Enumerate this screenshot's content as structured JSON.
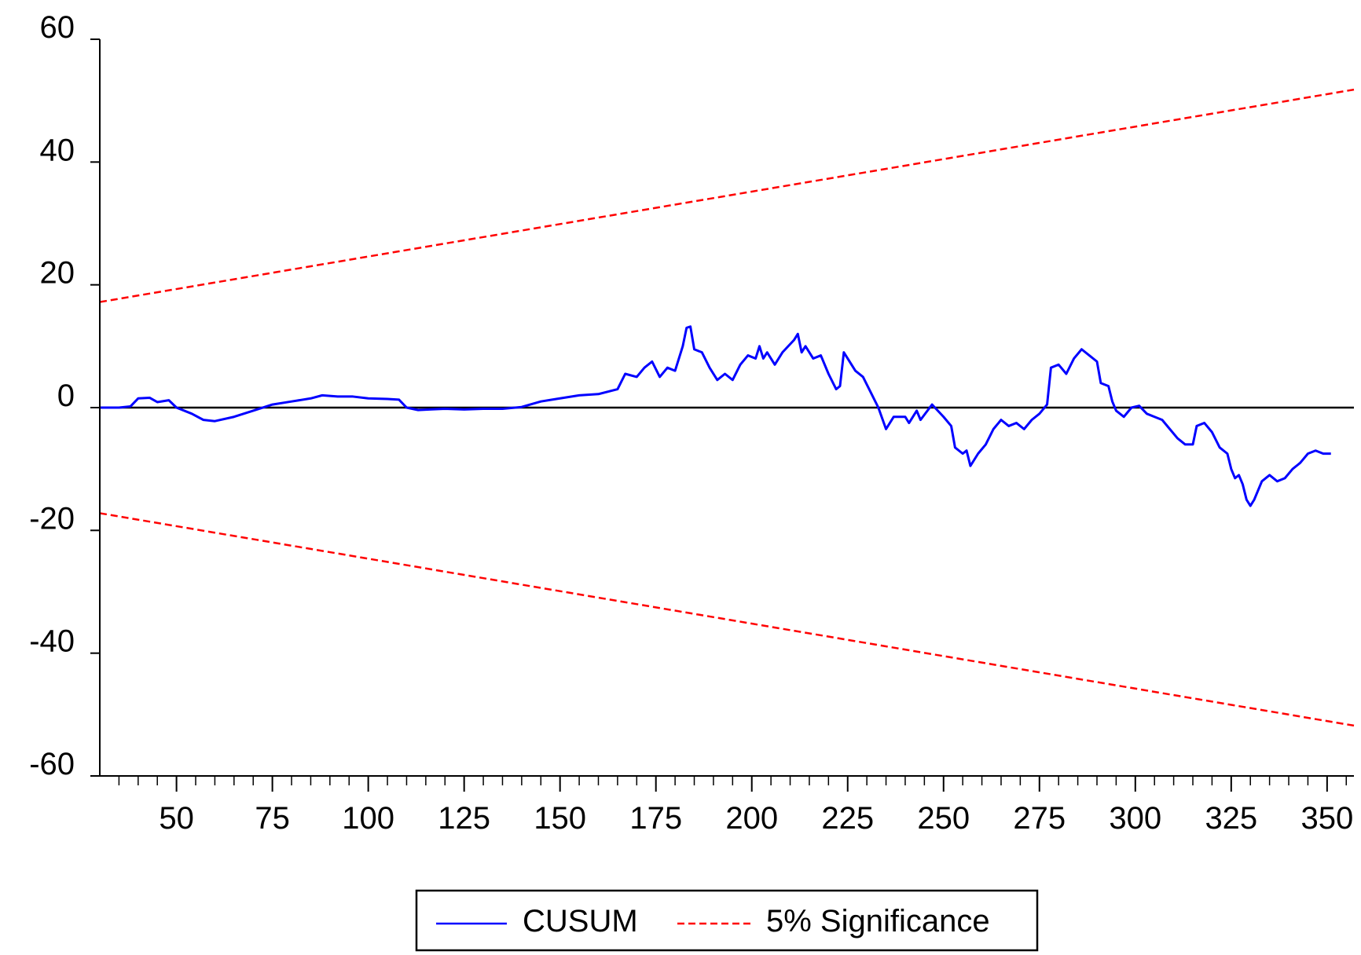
{
  "chart_data": {
    "type": "line",
    "title": "",
    "xlabel": "",
    "ylabel": "",
    "xlim": [
      30,
      357
    ],
    "ylim": [
      -60,
      60
    ],
    "x_ticks": [
      50,
      75,
      100,
      125,
      150,
      175,
      200,
      225,
      250,
      275,
      300,
      325,
      350
    ],
    "x_tick_labels": [
      "50",
      "75",
      "100",
      "125",
      "150",
      "175",
      "200",
      "225",
      "250",
      "275",
      "300",
      "325",
      "350"
    ],
    "y_ticks": [
      60,
      40,
      20,
      0,
      -20,
      -40,
      -60
    ],
    "y_tick_labels": [
      "60",
      "40",
      "20",
      "0",
      "-20",
      "-40",
      "-60"
    ],
    "grid": false,
    "zero_line": true,
    "legend_position": "bottom-center",
    "series": [
      {
        "name": "CUSUM",
        "color": "#0000ff",
        "style": "solid",
        "points": [
          [
            30,
            0
          ],
          [
            35,
            0
          ],
          [
            38,
            0.2
          ],
          [
            40,
            1.5
          ],
          [
            43,
            1.6
          ],
          [
            45,
            0.9
          ],
          [
            48,
            1.2
          ],
          [
            50,
            0
          ],
          [
            54,
            -1
          ],
          [
            57,
            -2
          ],
          [
            60,
            -2.2
          ],
          [
            65,
            -1.5
          ],
          [
            70,
            -0.5
          ],
          [
            75,
            0.5
          ],
          [
            80,
            1
          ],
          [
            85,
            1.5
          ],
          [
            88,
            2
          ],
          [
            92,
            1.8
          ],
          [
            96,
            1.8
          ],
          [
            100,
            1.5
          ],
          [
            105,
            1.4
          ],
          [
            108,
            1.3
          ],
          [
            110,
            0
          ],
          [
            113,
            -0.4
          ],
          [
            116,
            -0.3
          ],
          [
            120,
            -0.2
          ],
          [
            125,
            -0.3
          ],
          [
            130,
            -0.2
          ],
          [
            135,
            -0.2
          ],
          [
            140,
            0.1
          ],
          [
            145,
            1
          ],
          [
            150,
            1.5
          ],
          [
            155,
            2
          ],
          [
            160,
            2.2
          ],
          [
            165,
            3
          ],
          [
            167,
            5.5
          ],
          [
            170,
            5
          ],
          [
            172,
            6.5
          ],
          [
            174,
            7.5
          ],
          [
            176,
            5
          ],
          [
            178,
            6.5
          ],
          [
            180,
            6
          ],
          [
            182,
            10
          ],
          [
            183,
            13
          ],
          [
            184,
            13.2
          ],
          [
            185,
            9.5
          ],
          [
            187,
            9
          ],
          [
            189,
            6.5
          ],
          [
            191,
            4.5
          ],
          [
            193,
            5.5
          ],
          [
            195,
            4.5
          ],
          [
            197,
            7
          ],
          [
            199,
            8.5
          ],
          [
            201,
            8
          ],
          [
            202,
            10
          ],
          [
            203,
            8
          ],
          [
            204,
            9
          ],
          [
            206,
            7
          ],
          [
            208,
            9
          ],
          [
            211,
            11
          ],
          [
            212,
            12
          ],
          [
            213,
            9
          ],
          [
            214,
            10
          ],
          [
            216,
            8
          ],
          [
            218,
            8.5
          ],
          [
            220,
            5.5
          ],
          [
            222,
            3
          ],
          [
            223,
            3.5
          ],
          [
            224,
            9
          ],
          [
            225,
            8
          ],
          [
            227,
            6
          ],
          [
            229,
            5
          ],
          [
            231,
            2.5
          ],
          [
            233,
            0
          ],
          [
            235,
            -3.5
          ],
          [
            237,
            -1.5
          ],
          [
            240,
            -1.5
          ],
          [
            241,
            -2.5
          ],
          [
            243,
            -0.5
          ],
          [
            244,
            -2
          ],
          [
            247,
            0.5
          ],
          [
            250,
            -1.5
          ],
          [
            252,
            -3
          ],
          [
            253,
            -6.5
          ],
          [
            255,
            -7.5
          ],
          [
            256,
            -7
          ],
          [
            257,
            -9.5
          ],
          [
            259,
            -7.5
          ],
          [
            261,
            -6
          ],
          [
            263,
            -3.5
          ],
          [
            265,
            -2
          ],
          [
            267,
            -3
          ],
          [
            269,
            -2.5
          ],
          [
            271,
            -3.5
          ],
          [
            273,
            -2
          ],
          [
            275,
            -1
          ],
          [
            277,
            0.5
          ],
          [
            278,
            6.5
          ],
          [
            280,
            7
          ],
          [
            282,
            5.5
          ],
          [
            284,
            8
          ],
          [
            286,
            9.5
          ],
          [
            288,
            8.5
          ],
          [
            290,
            7.5
          ],
          [
            291,
            4
          ],
          [
            293,
            3.5
          ],
          [
            294,
            1
          ],
          [
            295,
            -0.5
          ],
          [
            297,
            -1.5
          ],
          [
            299,
            0
          ],
          [
            301,
            0.3
          ],
          [
            303,
            -1
          ],
          [
            305,
            -1.5
          ],
          [
            307,
            -2
          ],
          [
            309,
            -3.5
          ],
          [
            311,
            -5
          ],
          [
            313,
            -6
          ],
          [
            315,
            -6
          ],
          [
            316,
            -3
          ],
          [
            318,
            -2.5
          ],
          [
            320,
            -4
          ],
          [
            322,
            -6.5
          ],
          [
            324,
            -7.5
          ],
          [
            325,
            -10
          ],
          [
            326,
            -11.5
          ],
          [
            327,
            -11
          ],
          [
            328,
            -12.5
          ],
          [
            329,
            -15
          ],
          [
            330,
            -16
          ],
          [
            331,
            -15
          ],
          [
            333,
            -12
          ],
          [
            335,
            -11
          ],
          [
            337,
            -12
          ],
          [
            339,
            -11.5
          ],
          [
            341,
            -10
          ],
          [
            343,
            -9
          ],
          [
            345,
            -7.5
          ],
          [
            347,
            -7
          ],
          [
            349,
            -7.5
          ],
          [
            351,
            -7.5
          ]
        ]
      },
      {
        "name": "5% Significance",
        "color": "#ff0000",
        "style": "dashed",
        "points": [
          [
            30,
            17.2
          ],
          [
            357,
            51.8
          ]
        ]
      },
      {
        "name": "",
        "color": "#ff0000",
        "style": "dashed",
        "points": [
          [
            30,
            -17.2
          ],
          [
            357,
            -51.8
          ]
        ]
      }
    ]
  },
  "legend": {
    "items": [
      {
        "label": "CUSUM",
        "color": "#0000ff",
        "style": "solid"
      },
      {
        "label": "5% Significance",
        "color": "#ff0000",
        "style": "dashed"
      }
    ]
  }
}
